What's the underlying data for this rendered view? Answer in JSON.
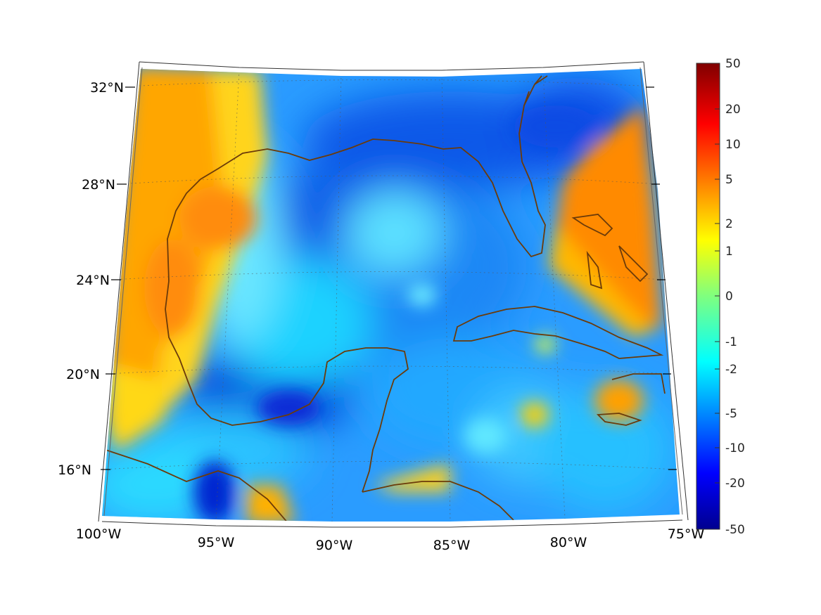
{
  "map": {
    "projection": "conic",
    "lon_range": [
      -100,
      -75
    ],
    "lat_range": [
      14,
      32
    ],
    "grid": true,
    "coastline_color": "#6b3b0a",
    "lon_labels": [
      "100°W",
      "95°W",
      "90°W",
      "85°W",
      "80°W",
      "75°W"
    ],
    "lat_labels": [
      "32°N",
      "28°N",
      "24°N",
      "20°N",
      "16°N"
    ]
  },
  "colorbar": {
    "colormap": "jet",
    "orientation": "vertical",
    "scale": "symmetric-log",
    "labels": [
      "50",
      "20",
      "10",
      "5",
      "2",
      "1",
      "0",
      "-1",
      "-2",
      "-5",
      "-10",
      "-20",
      "-50"
    ]
  },
  "chart_data": {
    "type": "heatmap",
    "x": "longitude",
    "y": "latitude",
    "xlim": [
      -100,
      -75
    ],
    "ylim": [
      14,
      32
    ],
    "clim": [
      -50,
      50
    ]
  }
}
